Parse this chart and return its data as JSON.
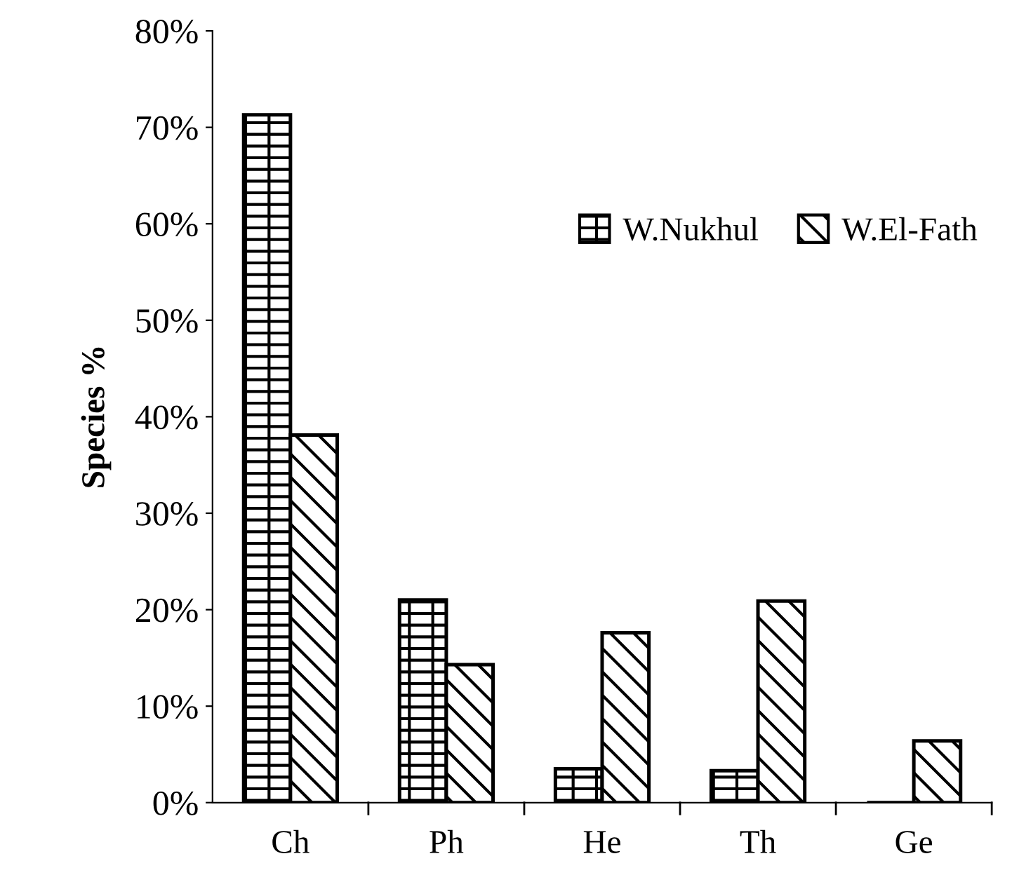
{
  "chart_data": {
    "type": "bar",
    "ylabel": "Species %",
    "categories": [
      "Ch",
      "Ph",
      "He",
      "Th",
      "Ge"
    ],
    "series": [
      {
        "name": "W.Nukhul",
        "color": "#000000",
        "values": [
          71.3,
          21.0,
          3.5,
          3.3,
          0
        ]
      },
      {
        "name": "W.El-Fath",
        "color": "#000000",
        "values": [
          38.1,
          14.3,
          17.6,
          20.9,
          6.4
        ]
      }
    ],
    "ylim": [
      0,
      80
    ],
    "yticks": [
      {
        "value": 0,
        "label": "0%"
      },
      {
        "value": 10,
        "label": "10%"
      },
      {
        "value": 20,
        "label": "20%"
      },
      {
        "value": 30,
        "label": "30%"
      },
      {
        "value": 40,
        "label": "40%"
      },
      {
        "value": 50,
        "label": "50%"
      },
      {
        "value": 60,
        "label": "60%"
      },
      {
        "value": 70,
        "label": "70%"
      },
      {
        "value": 80,
        "label": "80%"
      }
    ],
    "grid": false,
    "legend": "top right"
  }
}
